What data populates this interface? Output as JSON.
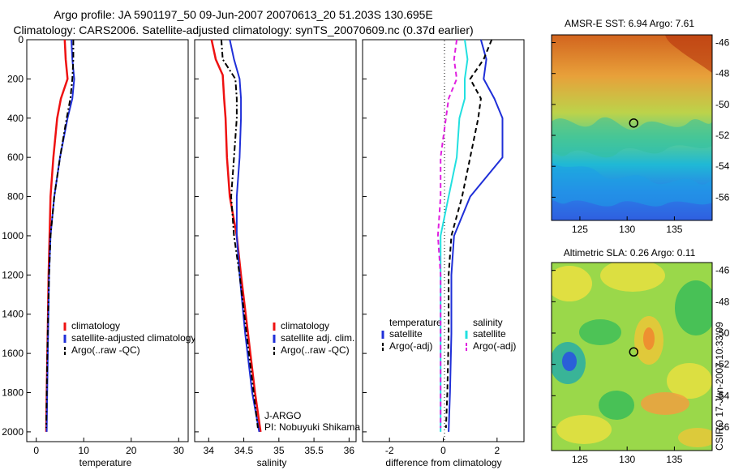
{
  "header": {
    "line1": "Argo profile: JA 5901197_50 09-Jun-2007 20070613_20 51.203S 130.695E",
    "line2": "Climatology: CARS2006. Satellite-adjusted climatology: synTS_20070609.nc (0.37d earlier)"
  },
  "credit": {
    "group": "J-ARGO",
    "pi": "PI: Nobuyuki Shikama",
    "stamp": "CSIRO 17-Jun-2007 10:33:09"
  },
  "colors": {
    "climatology": "#ee1111",
    "satellite": "#1f2fd8",
    "argo": "#000000",
    "satellite_diff": "#22e0e0",
    "argo_diff": "#e020e0"
  },
  "chart_data": [
    {
      "type": "line",
      "id": "temperature",
      "xlabel": "temperature",
      "ylabel": "",
      "xlim": [
        -2,
        32
      ],
      "ylim": [
        2050,
        0
      ],
      "xticks": [
        0,
        10,
        20,
        30
      ],
      "xtick_labels": [
        "0",
        "10",
        "20",
        "30"
      ],
      "yticks": [
        0,
        200,
        400,
        600,
        800,
        1000,
        1200,
        1400,
        1600,
        1800,
        2000
      ],
      "ytick_labels": [
        "0",
        "200",
        "400",
        "600",
        "800",
        "1000",
        "1200",
        "1400",
        "1600",
        "1800",
        "2000"
      ],
      "legend": [
        "climatology",
        "satellite-adjusted climatology",
        "Argo(..raw -QC)"
      ],
      "series": [
        {
          "name": "climatology",
          "x": [
            6.0,
            6.2,
            6.6,
            5.2,
            4.4,
            3.6,
            3.0,
            2.8,
            2.6,
            2.4,
            2.2,
            2.1
          ],
          "y": [
            0,
            100,
            200,
            300,
            400,
            600,
            800,
            1000,
            1200,
            1500,
            1800,
            2000
          ]
        },
        {
          "name": "satellite-adjusted climatology",
          "x": [
            7.4,
            7.6,
            8.0,
            7.6,
            6.6,
            5.0,
            3.8,
            3.0,
            2.7,
            2.5,
            2.3,
            2.2
          ],
          "y": [
            0,
            100,
            200,
            300,
            400,
            600,
            800,
            1000,
            1200,
            1500,
            1800,
            2000
          ]
        },
        {
          "name": "Argo(..raw -QC)",
          "x": [
            7.8,
            7.8,
            7.6,
            7.2,
            6.4,
            5.0,
            3.8,
            3.0,
            2.7,
            2.4,
            2.2,
            2.1
          ],
          "y": [
            0,
            100,
            200,
            300,
            400,
            600,
            800,
            1000,
            1200,
            1500,
            1800,
            1980
          ]
        }
      ]
    },
    {
      "type": "line",
      "id": "salinity",
      "xlabel": "salinity",
      "ylabel": "",
      "xlim": [
        33.8,
        36.1
      ],
      "ylim": [
        2050,
        0
      ],
      "xticks": [
        34,
        34.5,
        35,
        35.5,
        36
      ],
      "xtick_labels": [
        "34",
        "34.5",
        "35",
        "35.5",
        "36"
      ],
      "legend": [
        "climatology",
        "satellite adj. clim.",
        "Argo(..raw -QC)"
      ],
      "series": [
        {
          "name": "climatology",
          "x": [
            34.04,
            34.1,
            34.2,
            34.22,
            34.24,
            34.26,
            34.3,
            34.4,
            34.46,
            34.56,
            34.66,
            34.74
          ],
          "y": [
            0,
            100,
            180,
            300,
            400,
            600,
            800,
            1000,
            1200,
            1500,
            1800,
            2000
          ]
        },
        {
          "name": "satellite adj. clim.",
          "x": [
            34.3,
            34.36,
            34.44,
            34.46,
            34.46,
            34.44,
            34.4,
            34.4,
            34.44,
            34.52,
            34.62,
            34.72
          ],
          "y": [
            0,
            100,
            200,
            300,
            400,
            600,
            800,
            1000,
            1200,
            1500,
            1800,
            2000
          ]
        },
        {
          "name": "Argo(..raw -QC)",
          "x": [
            34.18,
            34.2,
            34.38,
            34.4,
            34.4,
            34.36,
            34.32,
            34.36,
            34.44,
            34.54,
            34.64,
            34.7
          ],
          "y": [
            0,
            100,
            200,
            300,
            400,
            600,
            800,
            1000,
            1200,
            1500,
            1800,
            1980
          ]
        }
      ]
    },
    {
      "type": "line",
      "id": "difference",
      "xlabel": "difference from climatology",
      "ylabel": "",
      "xlim": [
        -3,
        3
      ],
      "ylim": [
        2050,
        0
      ],
      "xticks": [
        -2,
        0,
        2
      ],
      "xtick_labels": [
        "-2",
        "0",
        "2"
      ],
      "legend_groups": [
        {
          "title": "temperature",
          "entries": [
            "satellite",
            "Argo(-adj)"
          ]
        },
        {
          "title": "salinity",
          "entries": [
            "satellite",
            "Argo(-adj)"
          ]
        }
      ],
      "series": [
        {
          "name": "satellite",
          "group": "temperature",
          "x": [
            1.4,
            1.6,
            1.5,
            1.9,
            2.2,
            2.2,
            1.0,
            0.4,
            0.3,
            0.3,
            0.25,
            0.2
          ],
          "y": [
            0,
            100,
            200,
            300,
            400,
            600,
            800,
            1000,
            1200,
            1500,
            1800,
            2000
          ]
        },
        {
          "name": "Argo(-adj)",
          "group": "temperature",
          "x": [
            1.8,
            1.5,
            1.0,
            1.4,
            1.3,
            1.0,
            0.7,
            0.3,
            0.2,
            0.2,
            0.15,
            0.1
          ],
          "y": [
            0,
            100,
            200,
            300,
            400,
            600,
            800,
            1000,
            1200,
            1500,
            1800,
            1980
          ]
        },
        {
          "name": "satellite",
          "group": "salinity",
          "x": [
            0.8,
            0.9,
            0.8,
            0.8,
            0.6,
            0.5,
            0.2,
            -0.1,
            -0.1,
            -0.1,
            -0.1,
            -0.1
          ],
          "y": [
            0,
            100,
            200,
            300,
            400,
            600,
            800,
            1000,
            1200,
            1500,
            1800,
            2000
          ]
        },
        {
          "name": "Argo(-adj)",
          "group": "salinity",
          "x": [
            0.5,
            0.4,
            0.5,
            0.2,
            0.1,
            -0.1,
            -0.1,
            -0.2,
            -0.1,
            -0.1,
            -0.1,
            -0.1
          ],
          "y": [
            0,
            100,
            200,
            300,
            400,
            600,
            800,
            1000,
            1200,
            1500,
            1800,
            1980
          ]
        }
      ]
    },
    {
      "type": "heatmap",
      "id": "sst_map",
      "title": "AMSR-E SST: 6.94 Argo: 7.61",
      "xlim": [
        122,
        139
      ],
      "ylim": [
        -57.5,
        -45.5
      ],
      "xticks": [
        125,
        130,
        135
      ],
      "xtick_labels": [
        "125",
        "130",
        "135"
      ],
      "yticks": [
        -46,
        -48,
        -50,
        -52,
        -54,
        -56
      ],
      "ytick_labels": [
        "-46",
        "-48",
        "-50",
        "-52",
        "-54",
        "-56"
      ],
      "marker": {
        "lon": 130.695,
        "lat": -51.203
      }
    },
    {
      "type": "heatmap",
      "id": "sla_map",
      "title": "Altimetric SLA: 0.26 Argo: 0.11",
      "xlim": [
        122,
        139
      ],
      "ylim": [
        -57.5,
        -45.5
      ],
      "xticks": [
        125,
        130,
        135
      ],
      "xtick_labels": [
        "125",
        "130",
        "135"
      ],
      "yticks": [
        -46,
        -48,
        -50,
        -52,
        -54,
        -56
      ],
      "ytick_labels": [
        "-46",
        "-48",
        "-50",
        "-52",
        "-54",
        "-56"
      ],
      "marker": {
        "lon": 130.695,
        "lat": -51.203
      }
    }
  ]
}
